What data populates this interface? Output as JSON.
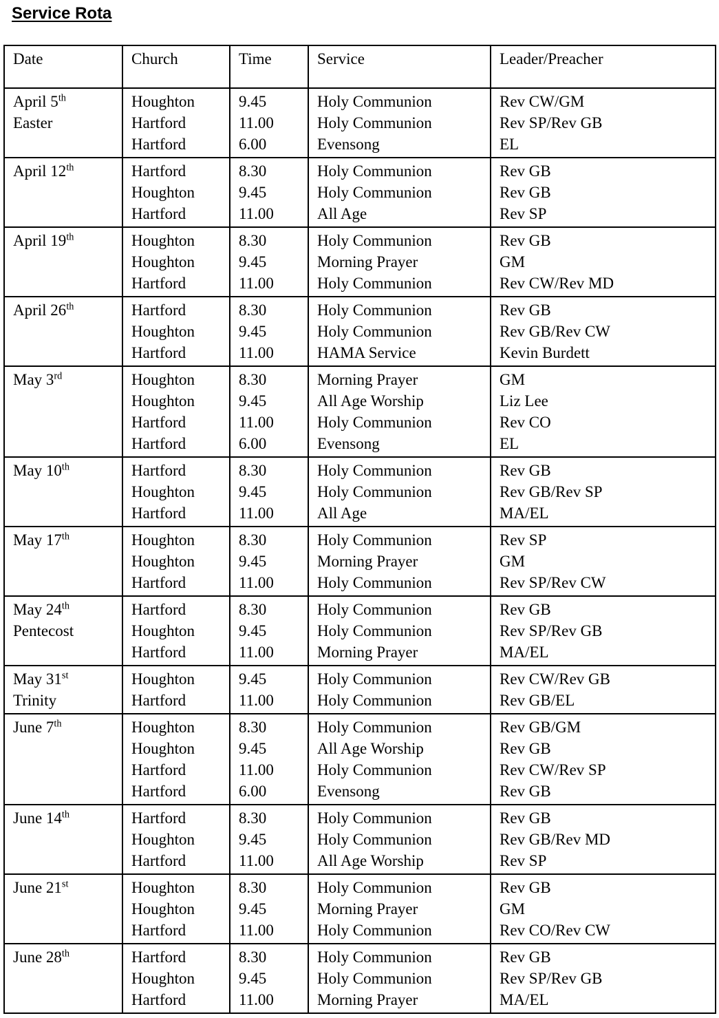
{
  "title": "Service Rota",
  "table": {
    "headers": [
      "Date",
      "Church",
      "Time",
      "Service",
      "Leader/Preacher"
    ],
    "groups": [
      {
        "date": "April 5",
        "suffix": "th",
        "note": "Easter",
        "rows": [
          {
            "church": "Houghton",
            "time": "9.45",
            "service": "Holy Communion",
            "leader": "Rev CW/GM"
          },
          {
            "church": "Hartford",
            "time": "11.00",
            "service": "Holy Communion",
            "leader": "Rev SP/Rev GB"
          },
          {
            "church": "Hartford",
            "time": "6.00",
            "service": "Evensong",
            "leader": "EL"
          }
        ]
      },
      {
        "date": "April 12",
        "suffix": "th",
        "note": "",
        "rows": [
          {
            "church": "Hartford",
            "time": "8.30",
            "service": "Holy Communion",
            "leader": "Rev GB"
          },
          {
            "church": "Houghton",
            "time": "9.45",
            "service": "Holy Communion",
            "leader": "Rev GB"
          },
          {
            "church": "Hartford",
            "time": "11.00",
            "service": "All Age",
            "leader": "Rev SP"
          }
        ]
      },
      {
        "date": "April 19",
        "suffix": "th",
        "note": "",
        "rows": [
          {
            "church": "Houghton",
            "time": "8.30",
            "service": "Holy Communion",
            "leader": "Rev GB"
          },
          {
            "church": "Houghton",
            "time": "9.45",
            "service": "Morning Prayer",
            "leader": "GM"
          },
          {
            "church": "Hartford",
            "time": "11.00",
            "service": "Holy Communion",
            "leader": "Rev CW/Rev MD"
          }
        ]
      },
      {
        "date": "April 26",
        "suffix": "th",
        "note": "",
        "rows": [
          {
            "church": "Hartford",
            "time": "8.30",
            "service": "Holy Communion",
            "leader": "Rev GB"
          },
          {
            "church": "Houghton",
            "time": "9.45",
            "service": "Holy Communion",
            "leader": "Rev GB/Rev CW"
          },
          {
            "church": "Hartford",
            "time": "11.00",
            "service": "HAMA Service",
            "leader": "Kevin Burdett"
          }
        ]
      },
      {
        "date": "May 3",
        "suffix": "rd",
        "note": "",
        "rows": [
          {
            "church": "Houghton",
            "time": "8.30",
            "service": "Morning Prayer",
            "leader": "GM"
          },
          {
            "church": "Houghton",
            "time": "9.45",
            "service": "All Age Worship",
            "leader": "Liz Lee"
          },
          {
            "church": "Hartford",
            "time": "11.00",
            "service": "Holy Communion",
            "leader": "Rev CO"
          },
          {
            "church": "Hartford",
            "time": "6.00",
            "service": "Evensong",
            "leader": "EL"
          }
        ]
      },
      {
        "date": "May 10",
        "suffix": "th",
        "note": "",
        "rows": [
          {
            "church": "Hartford",
            "time": "8.30",
            "service": "Holy Communion",
            "leader": "Rev GB"
          },
          {
            "church": "Houghton",
            "time": "9.45",
            "service": "Holy Communion",
            "leader": "Rev GB/Rev SP"
          },
          {
            "church": "Hartford",
            "time": "11.00",
            "service": "All Age",
            "leader": "MA/EL"
          }
        ]
      },
      {
        "date": "May 17",
        "suffix": "th",
        "note": "",
        "rows": [
          {
            "church": "Houghton",
            "time": "8.30",
            "service": "Holy Communion",
            "leader": "Rev SP"
          },
          {
            "church": "Houghton",
            "time": "9.45",
            "service": "Morning Prayer",
            "leader": "GM"
          },
          {
            "church": "Hartford",
            "time": "11.00",
            "service": "Holy Communion",
            "leader": "Rev SP/Rev CW"
          }
        ]
      },
      {
        "date": "May 24",
        "suffix": "th",
        "note": "Pentecost",
        "rows": [
          {
            "church": "Hartford",
            "time": "8.30",
            "service": "Holy Communion",
            "leader": "Rev GB"
          },
          {
            "church": "Houghton",
            "time": "9.45",
            "service": "Holy Communion",
            "leader": "Rev SP/Rev GB"
          },
          {
            "church": "Hartford",
            "time": "11.00",
            "service": "Morning Prayer",
            "leader": "MA/EL"
          }
        ]
      },
      {
        "date": "May 31",
        "suffix": "st",
        "note": "Trinity",
        "rows": [
          {
            "church": "Houghton",
            "time": "9.45",
            "service": "Holy Communion",
            "leader": "Rev CW/Rev GB"
          },
          {
            "church": "Hartford",
            "time": "11.00",
            "service": "Holy Communion",
            "leader": "Rev GB/EL"
          }
        ]
      },
      {
        "date": "June 7",
        "suffix": "th",
        "note": "",
        "rows": [
          {
            "church": "Houghton",
            "time": "8.30",
            "service": "Holy Communion",
            "leader": "Rev GB/GM"
          },
          {
            "church": "Houghton",
            "time": "9.45",
            "service": "All Age Worship",
            "leader": "Rev GB"
          },
          {
            "church": "Hartford",
            "time": "11.00",
            "service": "Holy Communion",
            "leader": "Rev CW/Rev SP"
          },
          {
            "church": "Hartford",
            "time": "6.00",
            "service": "Evensong",
            "leader": "Rev GB"
          }
        ]
      },
      {
        "date": "June 14",
        "suffix": "th",
        "note": "",
        "rows": [
          {
            "church": "Hartford",
            "time": "8.30",
            "service": "Holy Communion",
            "leader": "Rev GB"
          },
          {
            "church": "Houghton",
            "time": "9.45",
            "service": "Holy Communion",
            "leader": "Rev GB/Rev MD"
          },
          {
            "church": "Hartford",
            "time": "11.00",
            "service": "All Age Worship",
            "leader": "Rev SP"
          }
        ]
      },
      {
        "date": "June 21",
        "suffix": "st",
        "note": "",
        "rows": [
          {
            "church": "Houghton",
            "time": "8.30",
            "service": "Holy Communion",
            "leader": "Rev GB"
          },
          {
            "church": "Houghton",
            "time": "9.45",
            "service": "Morning Prayer",
            "leader": "GM"
          },
          {
            "church": "Hartford",
            "time": "11.00",
            "service": "Holy Communion",
            "leader": "Rev CO/Rev CW"
          }
        ]
      },
      {
        "date": "June 28",
        "suffix": "th",
        "note": "",
        "rows": [
          {
            "church": "Hartford",
            "time": "8.30",
            "service": "Holy Communion",
            "leader": "Rev GB"
          },
          {
            "church": "Houghton",
            "time": "9.45",
            "service": "Holy Communion",
            "leader": "Rev SP/Rev GB"
          },
          {
            "church": "Hartford",
            "time": "11.00",
            "service": "Morning Prayer",
            "leader": "MA/EL"
          }
        ]
      }
    ]
  }
}
